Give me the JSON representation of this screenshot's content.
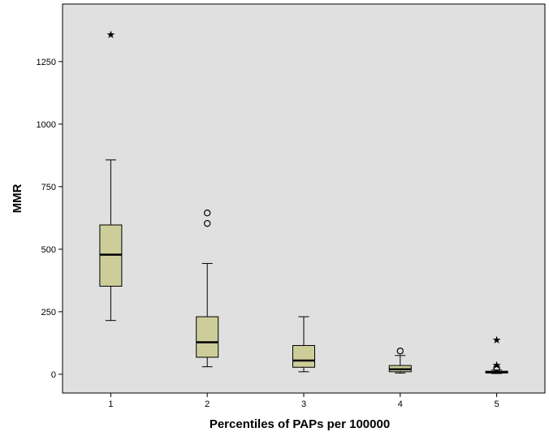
{
  "chart_data": {
    "type": "boxplot",
    "title": "",
    "xlabel": "Percentiles of PAPs per 100000",
    "ylabel": "MMR",
    "ylim": [
      -75,
      1480
    ],
    "yticks": [
      0,
      250,
      500,
      750,
      1000,
      1250
    ],
    "categories": [
      "1",
      "2",
      "3",
      "4",
      "5"
    ],
    "boxes": [
      {
        "category": "1",
        "whisker_low": 215,
        "q1": 352,
        "median": 478,
        "q3": 597,
        "whisker_high": 857,
        "outliers": [],
        "extremes": [
          1360
        ]
      },
      {
        "category": "2",
        "whisker_low": 30,
        "q1": 68,
        "median": 128,
        "q3": 230,
        "whisker_high": 443,
        "outliers": [
          603,
          645
        ],
        "extremes": []
      },
      {
        "category": "3",
        "whisker_low": 10,
        "q1": 28,
        "median": 55,
        "q3": 115,
        "whisker_high": 230,
        "outliers": [],
        "extremes": []
      },
      {
        "category": "4",
        "whisker_low": 5,
        "q1": 10,
        "median": 20,
        "q3": 35,
        "whisker_high": 75,
        "outliers": [
          93
        ],
        "extremes": []
      },
      {
        "category": "5",
        "whisker_low": 3,
        "q1": 5,
        "median": 9,
        "q3": 12,
        "whisker_high": 17,
        "outliers": [
          25
        ],
        "extremes": [
          38,
          140
        ]
      }
    ],
    "colors": {
      "plot_background": "#e0e0e0",
      "box_fill": "#cdcd9a",
      "stroke": "#000000"
    },
    "grid": false,
    "legend": "none"
  }
}
